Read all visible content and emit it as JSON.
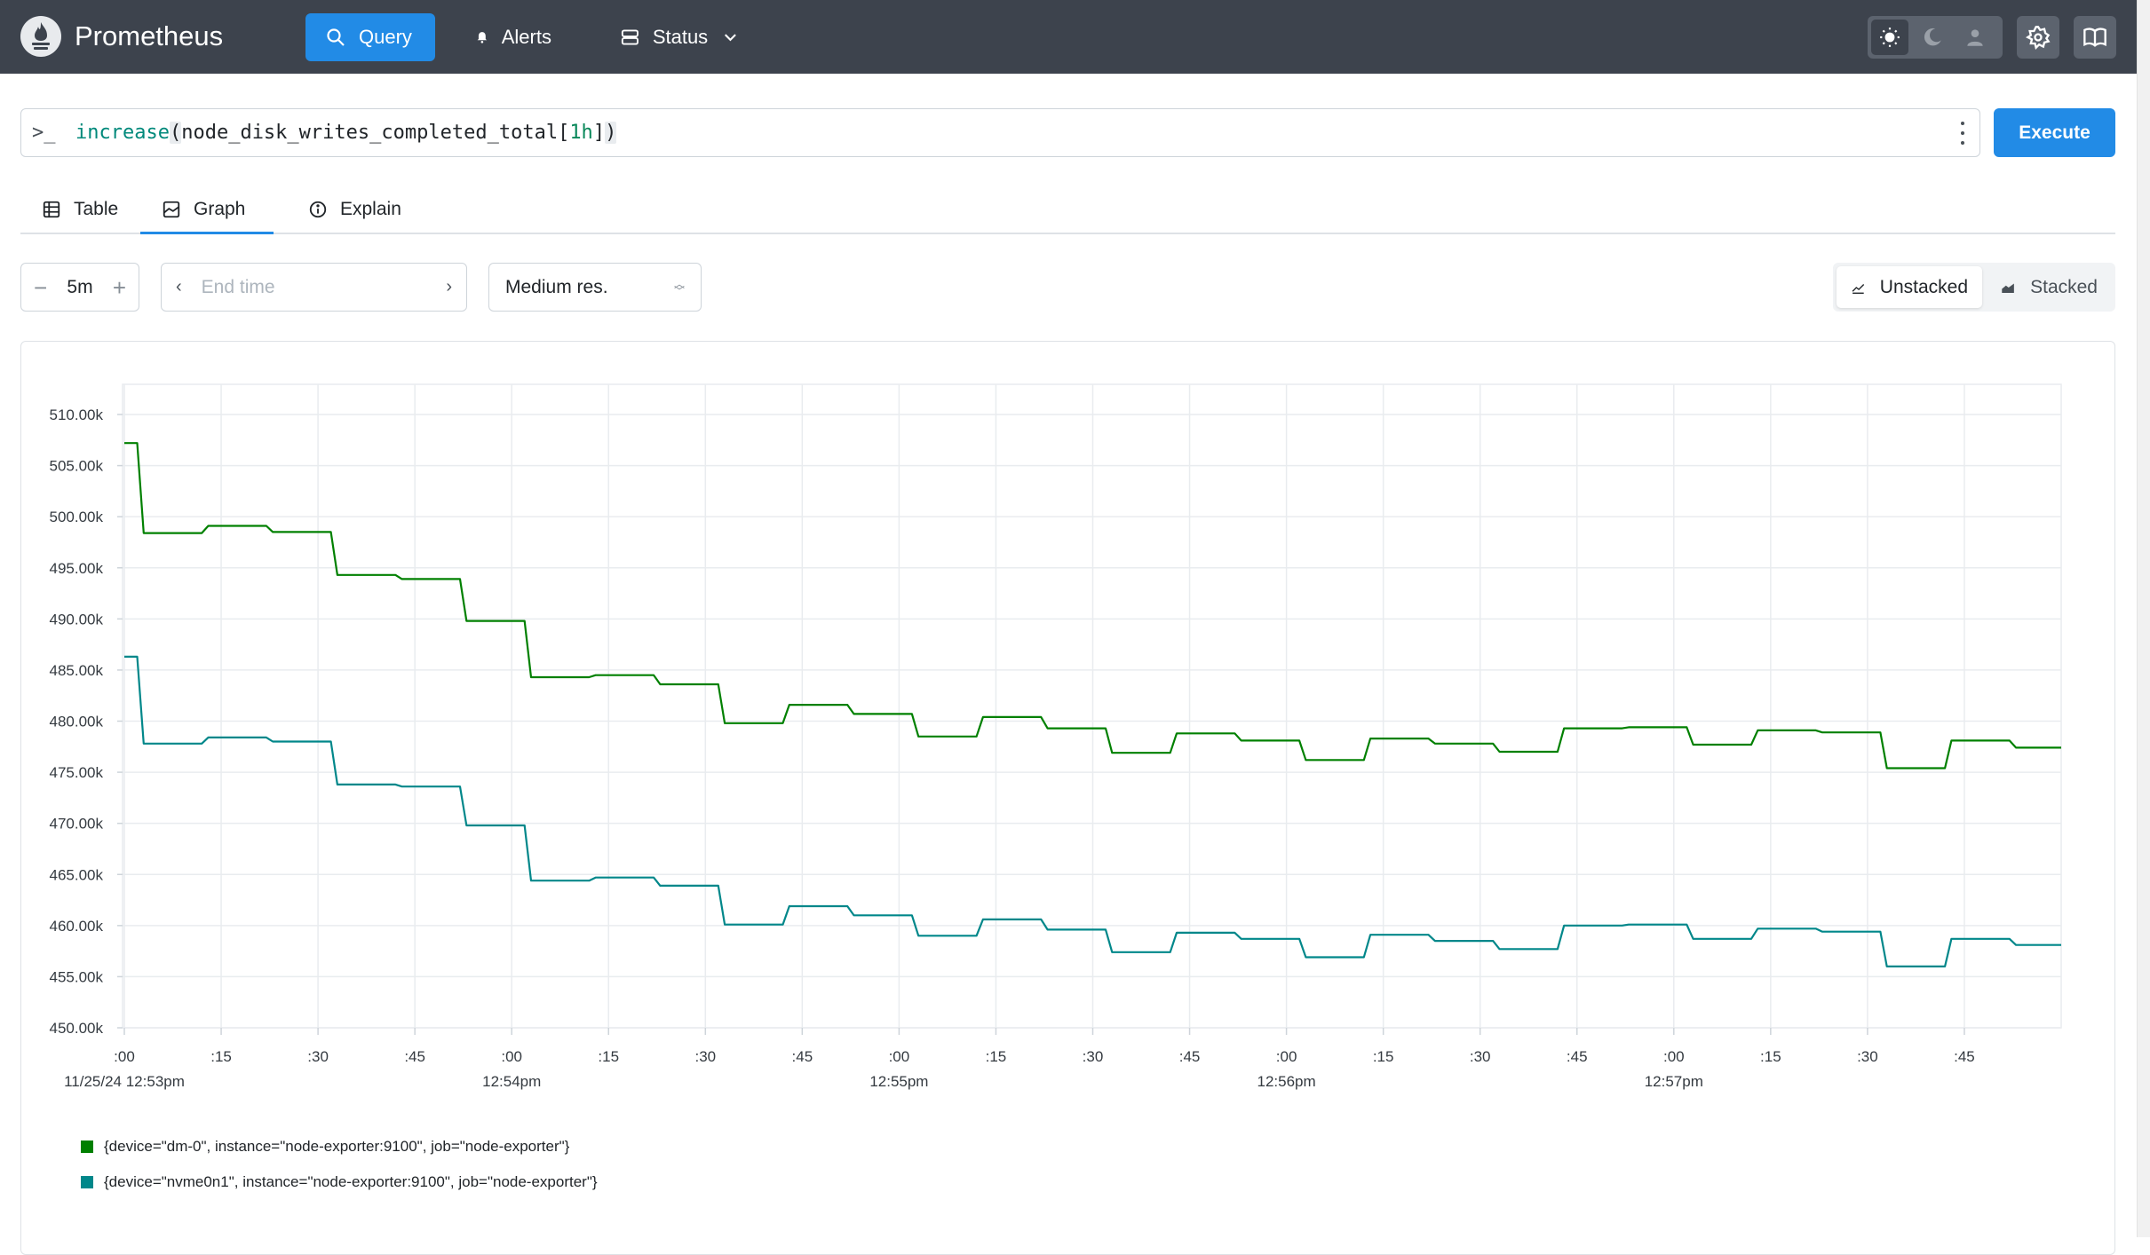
{
  "app": {
    "name": "Prometheus"
  },
  "nav": {
    "query": "Query",
    "alerts": "Alerts",
    "status": "Status"
  },
  "query": {
    "expression": "increase(node_disk_writes_completed_total[1h])",
    "parts": {
      "fn": "increase",
      "open": "(",
      "metric": "node_disk_writes_completed_total",
      "range_open": "[",
      "range": "1h",
      "range_close": "]",
      "close": ")"
    },
    "execute_label": "Execute"
  },
  "tabs": [
    {
      "label": "Table",
      "icon": "table-icon"
    },
    {
      "label": "Graph",
      "icon": "graph-icon",
      "active": true
    },
    {
      "label": "Explain",
      "icon": "info-icon"
    }
  ],
  "controls": {
    "range": "5m",
    "end_time_placeholder": "End time",
    "resolution": "Medium res.",
    "unstacked_label": "Unstacked",
    "stacked_label": "Stacked",
    "stack_mode": "unstacked"
  },
  "colors": {
    "accent": "#228be6",
    "header": "#3d434d",
    "series_dm0": "#008000",
    "series_nvme": "#00878a"
  },
  "chart_data": {
    "type": "line",
    "ylim": [
      450000,
      512500
    ],
    "yticks": [
      "510.00k",
      "505.00k",
      "500.00k",
      "495.00k",
      "490.00k",
      "485.00k",
      "480.00k",
      "475.00k",
      "470.00k",
      "465.00k",
      "460.00k",
      "455.00k",
      "450.00k"
    ],
    "ytick_values": [
      510000,
      505000,
      500000,
      495000,
      490000,
      485000,
      480000,
      475000,
      470000,
      465000,
      460000,
      455000,
      450000
    ],
    "xlim_seconds": [
      0,
      300
    ],
    "xticks": [
      {
        "s": 0,
        "label": ":00",
        "sub": "11/25/24 12:53pm"
      },
      {
        "s": 15,
        "label": ":15"
      },
      {
        "s": 30,
        "label": ":30"
      },
      {
        "s": 45,
        "label": ":45"
      },
      {
        "s": 60,
        "label": ":00",
        "sub": "12:54pm"
      },
      {
        "s": 75,
        "label": ":15"
      },
      {
        "s": 90,
        "label": ":30"
      },
      {
        "s": 105,
        "label": ":45"
      },
      {
        "s": 120,
        "label": ":00",
        "sub": "12:55pm"
      },
      {
        "s": 135,
        "label": ":15"
      },
      {
        "s": 150,
        "label": ":30"
      },
      {
        "s": 165,
        "label": ":45"
      },
      {
        "s": 180,
        "label": ":00",
        "sub": "12:56pm"
      },
      {
        "s": 195,
        "label": ":15"
      },
      {
        "s": 210,
        "label": ":30"
      },
      {
        "s": 225,
        "label": ":45"
      },
      {
        "s": 240,
        "label": ":00",
        "sub": "12:57pm"
      },
      {
        "s": 255,
        "label": ":15"
      },
      {
        "s": 270,
        "label": ":30"
      },
      {
        "s": 285,
        "label": ":45"
      }
    ],
    "grid": true,
    "series": [
      {
        "name": "{device=\"dm-0\", instance=\"node-exporter:9100\", job=\"node-exporter\"}",
        "color": "#008000",
        "points": [
          [
            0,
            507200
          ],
          [
            2,
            507200
          ],
          [
            3,
            498400
          ],
          [
            12,
            498400
          ],
          [
            13,
            499100
          ],
          [
            22,
            499100
          ],
          [
            23,
            498500
          ],
          [
            32,
            498500
          ],
          [
            33,
            494300
          ],
          [
            42,
            494300
          ],
          [
            43,
            493900
          ],
          [
            52,
            493900
          ],
          [
            53,
            489800
          ],
          [
            62,
            489800
          ],
          [
            63,
            484300
          ],
          [
            72,
            484300
          ],
          [
            73,
            484500
          ],
          [
            82,
            484500
          ],
          [
            83,
            483600
          ],
          [
            92,
            483600
          ],
          [
            93,
            479800
          ],
          [
            102,
            479800
          ],
          [
            103,
            481600
          ],
          [
            112,
            481600
          ],
          [
            113,
            480700
          ],
          [
            122,
            480700
          ],
          [
            123,
            478500
          ],
          [
            132,
            478500
          ],
          [
            133,
            480400
          ],
          [
            142,
            480400
          ],
          [
            143,
            479300
          ],
          [
            152,
            479300
          ],
          [
            153,
            476900
          ],
          [
            162,
            476900
          ],
          [
            163,
            478800
          ],
          [
            172,
            478800
          ],
          [
            173,
            478100
          ],
          [
            182,
            478100
          ],
          [
            183,
            476200
          ],
          [
            192,
            476200
          ],
          [
            193,
            478300
          ],
          [
            202,
            478300
          ],
          [
            203,
            477800
          ],
          [
            212,
            477800
          ],
          [
            213,
            477000
          ],
          [
            222,
            477000
          ],
          [
            223,
            479300
          ],
          [
            232,
            479300
          ],
          [
            233,
            479400
          ],
          [
            242,
            479400
          ],
          [
            243,
            477700
          ],
          [
            252,
            477700
          ],
          [
            253,
            479100
          ],
          [
            262,
            479100
          ],
          [
            263,
            478900
          ],
          [
            272,
            478900
          ],
          [
            273,
            475400
          ],
          [
            282,
            475400
          ],
          [
            283,
            478100
          ],
          [
            292,
            478100
          ],
          [
            293,
            477400
          ],
          [
            300,
            477400
          ]
        ]
      },
      {
        "name": "{device=\"nvme0n1\", instance=\"node-exporter:9100\", job=\"node-exporter\"}",
        "color": "#00878a",
        "points": [
          [
            0,
            486300
          ],
          [
            2,
            486300
          ],
          [
            3,
            477800
          ],
          [
            12,
            477800
          ],
          [
            13,
            478400
          ],
          [
            22,
            478400
          ],
          [
            23,
            478000
          ],
          [
            32,
            478000
          ],
          [
            33,
            473800
          ],
          [
            42,
            473800
          ],
          [
            43,
            473600
          ],
          [
            52,
            473600
          ],
          [
            53,
            469800
          ],
          [
            62,
            469800
          ],
          [
            63,
            464400
          ],
          [
            72,
            464400
          ],
          [
            73,
            464700
          ],
          [
            82,
            464700
          ],
          [
            83,
            463900
          ],
          [
            92,
            463900
          ],
          [
            93,
            460100
          ],
          [
            102,
            460100
          ],
          [
            103,
            461900
          ],
          [
            112,
            461900
          ],
          [
            113,
            461000
          ],
          [
            122,
            461000
          ],
          [
            123,
            459000
          ],
          [
            132,
            459000
          ],
          [
            133,
            460600
          ],
          [
            142,
            460600
          ],
          [
            143,
            459600
          ],
          [
            152,
            459600
          ],
          [
            153,
            457400
          ],
          [
            162,
            457400
          ],
          [
            163,
            459300
          ],
          [
            172,
            459300
          ],
          [
            173,
            458700
          ],
          [
            182,
            458700
          ],
          [
            183,
            456900
          ],
          [
            192,
            456900
          ],
          [
            193,
            459100
          ],
          [
            202,
            459100
          ],
          [
            203,
            458500
          ],
          [
            212,
            458500
          ],
          [
            213,
            457700
          ],
          [
            222,
            457700
          ],
          [
            223,
            460000
          ],
          [
            232,
            460000
          ],
          [
            233,
            460100
          ],
          [
            242,
            460100
          ],
          [
            243,
            458700
          ],
          [
            252,
            458700
          ],
          [
            253,
            459700
          ],
          [
            262,
            459700
          ],
          [
            263,
            459400
          ],
          [
            272,
            459400
          ],
          [
            273,
            456000
          ],
          [
            282,
            456000
          ],
          [
            283,
            458700
          ],
          [
            292,
            458700
          ],
          [
            293,
            458100
          ],
          [
            300,
            458100
          ]
        ]
      }
    ]
  }
}
